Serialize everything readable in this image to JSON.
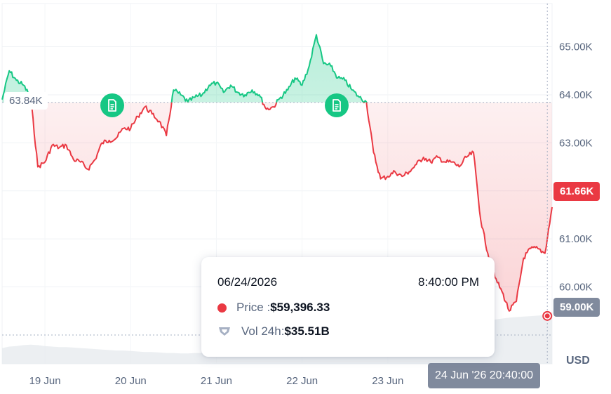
{
  "chart_data": {
    "type": "area",
    "unit": "USD",
    "x_labels": [
      "19 Jun",
      "20 Jun",
      "21 Jun",
      "22 Jun",
      "23 Jun"
    ],
    "y_labels": [
      "65.00K",
      "64.00K",
      "63.00K",
      "62.00K",
      "61.00K",
      "60.00K"
    ],
    "ylim": [
      58400,
      65900
    ],
    "reference_price": 63840,
    "reference_label": "63.84K",
    "last_price": 61660,
    "last_price_label": "61.66K",
    "crosshair_price_label": "59.00K",
    "crosshair_time_label": "24 Jun '26 20:40:00",
    "colors": {
      "up": "#16c784",
      "down": "#ea3943",
      "neutral": "#808a9d"
    },
    "series": [
      {
        "name": "Price",
        "x": [
          "18 Jun 12:00",
          "18 Jun 14:00",
          "18 Jun 16:00",
          "18 Jun 18:00",
          "18 Jun 20:00",
          "18 Jun 22:00",
          "19 Jun 00:00",
          "19 Jun 02:00",
          "19 Jun 04:00",
          "19 Jun 06:00",
          "19 Jun 08:00",
          "19 Jun 10:00",
          "19 Jun 12:00",
          "19 Jun 14:00",
          "19 Jun 16:00",
          "19 Jun 18:00",
          "19 Jun 20:00",
          "19 Jun 22:00",
          "20 Jun 00:00",
          "20 Jun 02:00",
          "20 Jun 04:00",
          "20 Jun 06:00",
          "20 Jun 08:00",
          "20 Jun 10:00",
          "20 Jun 12:00",
          "20 Jun 14:00",
          "20 Jun 16:00",
          "20 Jun 18:00",
          "20 Jun 20:00",
          "20 Jun 22:00",
          "21 Jun 00:00",
          "21 Jun 02:00",
          "21 Jun 04:00",
          "21 Jun 06:00",
          "21 Jun 08:00",
          "21 Jun 10:00",
          "21 Jun 12:00",
          "21 Jun 14:00",
          "21 Jun 16:00",
          "21 Jun 18:00",
          "21 Jun 20:00",
          "21 Jun 22:00",
          "22 Jun 00:00",
          "22 Jun 02:00",
          "22 Jun 04:00",
          "22 Jun 06:00",
          "22 Jun 08:00",
          "22 Jun 10:00",
          "22 Jun 12:00",
          "22 Jun 14:00",
          "22 Jun 16:00",
          "22 Jun 18:00",
          "22 Jun 20:00",
          "22 Jun 22:00",
          "23 Jun 00:00",
          "23 Jun 02:00",
          "23 Jun 04:00",
          "23 Jun 06:00",
          "23 Jun 08:00",
          "23 Jun 10:00",
          "23 Jun 12:00",
          "23 Jun 14:00",
          "23 Jun 16:00",
          "23 Jun 18:00",
          "23 Jun 20:00",
          "23 Jun 22:00",
          "24 Jun 00:00",
          "24 Jun 02:00",
          "24 Jun 04:00",
          "24 Jun 06:00",
          "24 Jun 08:00",
          "24 Jun 10:00",
          "24 Jun 12:00",
          "24 Jun 14:00",
          "24 Jun 16:00",
          "24 Jun 18:00",
          "24 Jun 20:00",
          "24 Jun 22:00"
        ],
        "values": [
          63900,
          64500,
          64300,
          64200,
          63950,
          62500,
          62600,
          62950,
          62900,
          62950,
          62650,
          62600,
          62450,
          62650,
          63000,
          63050,
          63100,
          63300,
          63300,
          63550,
          63750,
          63600,
          63450,
          63150,
          64100,
          64000,
          63850,
          63950,
          64000,
          64200,
          64250,
          64050,
          64200,
          64050,
          64000,
          64100,
          64000,
          63700,
          63750,
          63950,
          64100,
          64350,
          64200,
          64600,
          65250,
          64650,
          64600,
          64350,
          64300,
          64100,
          63950,
          63850,
          62800,
          62250,
          62300,
          62400,
          62300,
          62400,
          62550,
          62700,
          62600,
          62700,
          62600,
          62600,
          62500,
          62700,
          62800,
          61400,
          60700,
          60200,
          59900,
          59500,
          59700,
          60600,
          60800,
          60800,
          60700,
          61660
        ]
      }
    ],
    "tooltip": {
      "date": "06/24/2026",
      "time": "8:40:00 PM",
      "price_label": "Price : ",
      "price_value": "$59,396.33",
      "volume_label": "Vol 24h: ",
      "volume_value": "$35.51B",
      "highlighted_price": 59396.33
    },
    "volume_series": {
      "name": "Vol 24h",
      "values": [
        0.32,
        0.35,
        0.36,
        0.38,
        0.39,
        0.38,
        0.36,
        0.35,
        0.34,
        0.34,
        0.33,
        0.32,
        0.31,
        0.3,
        0.29,
        0.28,
        0.27,
        0.27,
        0.26,
        0.25,
        0.24,
        0.24,
        0.23,
        0.22,
        0.22,
        0.21,
        0.21,
        0.22,
        0.22,
        0.23,
        0.23,
        0.24,
        0.25,
        0.26,
        0.27,
        0.28,
        0.29,
        0.3,
        0.31,
        0.31,
        0.32,
        0.33,
        0.34,
        0.35,
        0.36,
        0.37,
        0.38,
        0.4,
        0.42,
        0.44,
        0.46,
        0.48,
        0.52,
        0.56,
        0.6,
        0.62,
        0.64,
        0.66,
        0.68,
        0.7,
        0.72,
        0.74,
        0.76,
        0.78,
        0.8,
        0.82,
        0.84,
        0.86,
        0.88,
        0.9,
        0.92,
        0.94,
        0.95,
        0.96,
        0.97,
        0.98,
        0.99,
        1.0
      ]
    },
    "news_markers": [
      {
        "x": "19 Jun 10:00",
        "icon": "document-icon"
      },
      {
        "x": "22 Jun 14:00",
        "icon": "document-icon"
      }
    ],
    "grid": true,
    "legend": "none"
  }
}
